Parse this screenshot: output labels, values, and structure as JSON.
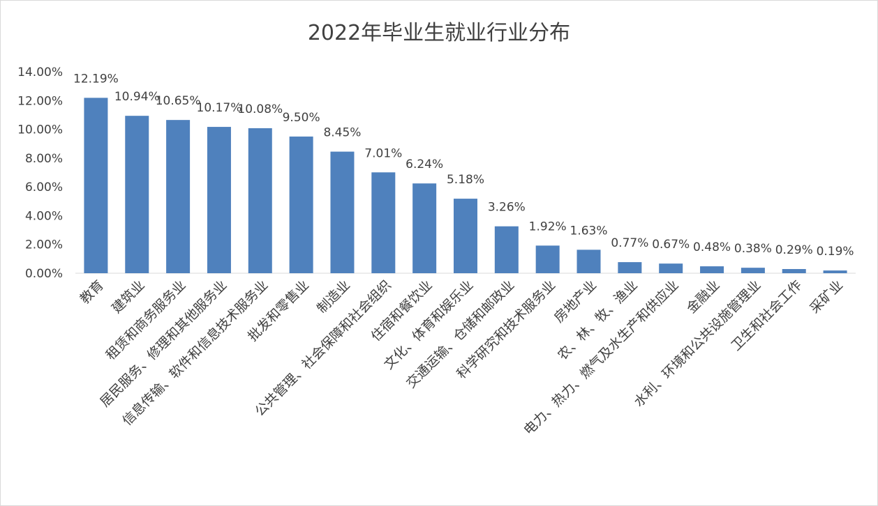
{
  "chart_data": {
    "type": "bar",
    "title": "2022年毕业生就业行业分布",
    "xlabel": "",
    "ylabel": "",
    "ylim": [
      0,
      14
    ],
    "y_ticks": [
      "0.00%",
      "2.00%",
      "4.00%",
      "6.00%",
      "8.00%",
      "10.00%",
      "12.00%",
      "14.00%"
    ],
    "grid": false,
    "legend": "none",
    "bar_color": "#4f81bd",
    "categories": [
      "教育",
      "建筑业",
      "租赁和商务服务业",
      "居民服务、修理和其他服务业",
      "信息传输、软件和信息技术服务业",
      "批发和零售业",
      "制造业",
      "公共管理、社会保障和社会组织",
      "住宿和餐饮业",
      "文化、体育和娱乐业",
      "交通运输、仓储和邮政业",
      "科学研究和技术服务业",
      "房地产业",
      "农、林、牧、渔业",
      "电力、热力、燃气及水生产和供应业",
      "金融业",
      "水利、环境和公共设施管理业",
      "卫生和社会工作",
      "采矿业"
    ],
    "values": [
      12.19,
      10.94,
      10.65,
      10.17,
      10.08,
      9.5,
      8.45,
      7.01,
      6.24,
      5.18,
      3.26,
      1.92,
      1.63,
      0.77,
      0.67,
      0.48,
      0.38,
      0.29,
      0.19
    ],
    "data_labels": [
      "12.19%",
      "10.94%",
      "10.65%",
      "10.17%",
      "10.08%",
      "9.50%",
      "8.45%",
      "7.01%",
      "6.24%",
      "5.18%",
      "3.26%",
      "1.92%",
      "1.63%",
      "0.77%",
      "0.67%",
      "0.48%",
      "0.38%",
      "0.29%",
      "0.19%"
    ]
  }
}
